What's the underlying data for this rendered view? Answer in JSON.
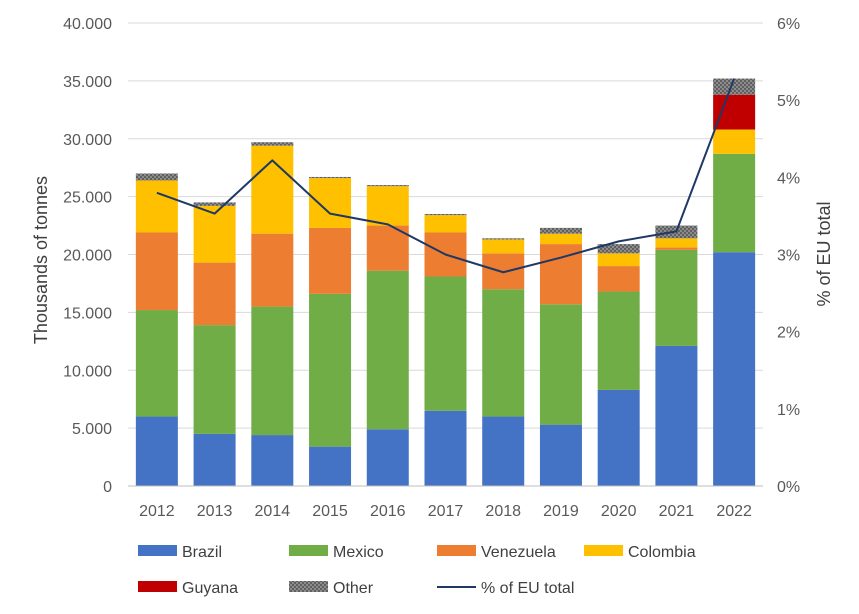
{
  "chart_data": {
    "type": "bar",
    "stacked": true,
    "categories": [
      "2012",
      "2013",
      "2014",
      "2015",
      "2016",
      "2017",
      "2018",
      "2019",
      "2020",
      "2021",
      "2022"
    ],
    "series": [
      {
        "name": "Brazil",
        "color": "#4472C4",
        "values": [
          6000,
          4500,
          4400,
          3400,
          4900,
          6500,
          6000,
          5300,
          8300,
          12100,
          20200
        ]
      },
      {
        "name": "Mexico",
        "color": "#70AD47",
        "values": [
          9200,
          9400,
          11100,
          13200,
          13700,
          11600,
          11000,
          10400,
          8500,
          8300,
          8500
        ]
      },
      {
        "name": "Venezuela",
        "color": "#ED7D31",
        "values": [
          6700,
          5400,
          6300,
          5700,
          3900,
          3800,
          3100,
          5200,
          2200,
          200,
          0
        ]
      },
      {
        "name": "Colombia",
        "color": "#FFC000",
        "values": [
          4500,
          4900,
          7600,
          4300,
          3400,
          1500,
          1200,
          900,
          1100,
          800,
          2100
        ]
      },
      {
        "name": "Guyana",
        "color": "#C00000",
        "values": [
          0,
          0,
          0,
          0,
          0,
          0,
          0,
          0,
          0,
          0,
          3000
        ]
      },
      {
        "name": "Other",
        "color": "#7F7F7F",
        "values": [
          600,
          300,
          300,
          100,
          100,
          100,
          100,
          500,
          800,
          1100,
          1400
        ]
      }
    ],
    "line_series": {
      "name": "% of EU total",
      "color": "#1F3864",
      "axis": "secondary",
      "values": [
        3.8,
        3.53,
        4.22,
        3.53,
        3.39,
        3.0,
        2.77,
        2.96,
        3.17,
        3.3,
        5.28
      ]
    },
    "ylabel": "Thousands of tonnes",
    "y2label": "% of EU total",
    "ylim": [
      0,
      40000
    ],
    "y2lim": [
      0,
      6
    ],
    "yticks": [
      "0",
      "5.000",
      "10.000",
      "15.000",
      "20.000",
      "25.000",
      "30.000",
      "35.000",
      "40.000"
    ],
    "y2ticks": [
      "0%",
      "1%",
      "2%",
      "3%",
      "4%",
      "5%",
      "6%"
    ],
    "grid": true,
    "legend": "bottom"
  }
}
